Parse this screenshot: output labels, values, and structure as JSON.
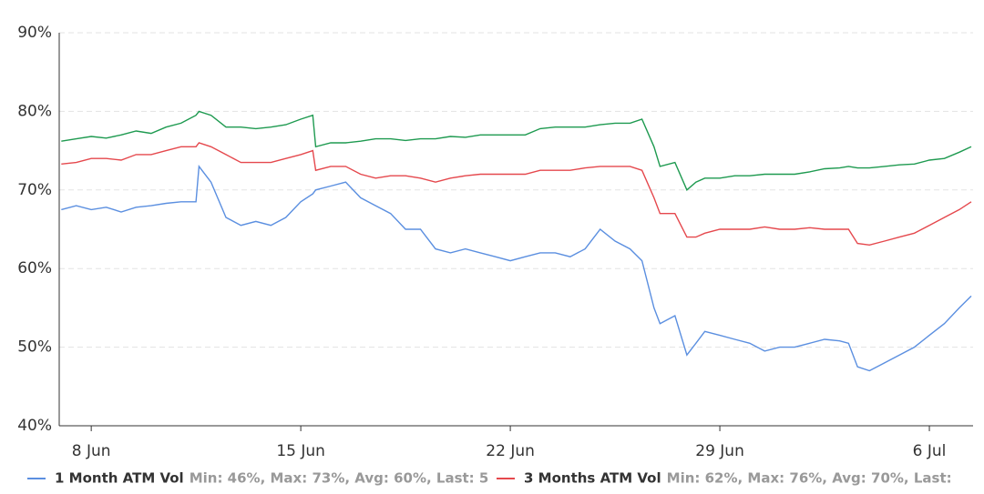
{
  "chart_data": {
    "type": "line",
    "x": [
      7,
      7.5,
      8,
      8.5,
      9,
      9.5,
      10,
      10.5,
      11,
      11.5,
      11.6,
      12,
      12.5,
      13,
      13.5,
      14,
      14.5,
      15,
      15.4,
      15.5,
      16,
      16.5,
      17,
      17.5,
      18,
      18.5,
      19,
      19.5,
      20,
      20.5,
      21,
      21.5,
      22,
      22.5,
      23,
      23.5,
      24,
      24.5,
      25,
      25.5,
      26,
      26.4,
      26.8,
      27,
      27.5,
      27.9,
      28.2,
      28.5,
      29,
      29.5,
      30,
      30.5,
      31,
      31.5,
      32,
      32.5,
      33,
      33.3,
      33.6,
      34,
      34.5,
      35,
      35.5,
      36,
      36.5,
      37,
      37.4
    ],
    "series": [
      {
        "name": "1 Month ATM Vol",
        "legend_stats": "Min: 46%, Max: 73%, Avg: 60%, Last: 5",
        "color": "#5b8fe0",
        "values": [
          67.5,
          68,
          67.5,
          67.8,
          67.2,
          67.8,
          68,
          68.3,
          68.5,
          68.5,
          73,
          71,
          66.5,
          65.5,
          66,
          65.5,
          66.5,
          68.5,
          69.5,
          70,
          70.5,
          71,
          69,
          68,
          67,
          65,
          65,
          62.5,
          62,
          62.5,
          62,
          61.5,
          61,
          61.5,
          62,
          62,
          61.5,
          62.5,
          65,
          63.5,
          62.5,
          61,
          55,
          53,
          54,
          49,
          50.5,
          52,
          51.5,
          51,
          50.5,
          49.5,
          50,
          50,
          50.5,
          51,
          50.8,
          50.5,
          47.5,
          47,
          48,
          49,
          50,
          51.5,
          53,
          55,
          56.5
        ]
      },
      {
        "name": "3 Months ATM Vol",
        "legend_stats": "Min: 62%, Max: 76%, Avg: 70%, Last:",
        "color": "#e5484d",
        "values": [
          73.3,
          73.5,
          74,
          74,
          73.8,
          74.5,
          74.5,
          75,
          75.5,
          75.5,
          76,
          75.5,
          74.5,
          73.5,
          73.5,
          73.5,
          74,
          74.5,
          75,
          72.5,
          73,
          73,
          72,
          71.5,
          71.8,
          71.8,
          71.5,
          71,
          71.5,
          71.8,
          72,
          72,
          72,
          72,
          72.5,
          72.5,
          72.5,
          72.8,
          73,
          73,
          73,
          72.5,
          69,
          67,
          67,
          64,
          64,
          64.5,
          65,
          65,
          65,
          65.3,
          65,
          65,
          65.2,
          65,
          65,
          65,
          63.2,
          63,
          63.5,
          64,
          64.5,
          65.5,
          66.5,
          67.5,
          68.5
        ]
      },
      {
        "color": "#1e9a50",
        "values": [
          76.2,
          76.5,
          76.8,
          76.6,
          77,
          77.5,
          77.2,
          78,
          78.5,
          79.5,
          80,
          79.5,
          78,
          78,
          77.8,
          78,
          78.3,
          79,
          79.5,
          75.5,
          76,
          76,
          76.2,
          76.5,
          76.5,
          76.3,
          76.5,
          76.5,
          76.8,
          76.7,
          77,
          77,
          77,
          77,
          77.8,
          78,
          78,
          78,
          78.3,
          78.5,
          78.5,
          79,
          75.5,
          73,
          73.5,
          70,
          71,
          71.5,
          71.5,
          71.8,
          71.8,
          72,
          72,
          72,
          72.3,
          72.7,
          72.8,
          73,
          72.8,
          72.8,
          73,
          73.2,
          73.3,
          73.8,
          74,
          74.8,
          75.5
        ]
      }
    ],
    "xlim": [
      6.93,
      37.46
    ],
    "xticks": [
      {
        "value": 8,
        "label": "8 Jun"
      },
      {
        "value": 15,
        "label": "15 Jun"
      },
      {
        "value": 22,
        "label": "22 Jun"
      },
      {
        "value": 29,
        "label": "29 Jun"
      },
      {
        "value": 36,
        "label": "6 Jul"
      }
    ],
    "ylim": [
      40,
      90
    ],
    "yticks": [
      {
        "value": 40,
        "label": "40%"
      },
      {
        "value": 50,
        "label": "50%"
      },
      {
        "value": 60,
        "label": "60%"
      },
      {
        "value": 70,
        "label": "70%"
      },
      {
        "value": 80,
        "label": "80%"
      },
      {
        "value": 90,
        "label": "90%"
      }
    ],
    "grid": true
  }
}
